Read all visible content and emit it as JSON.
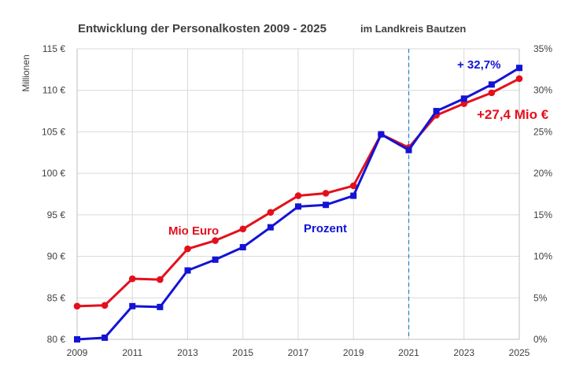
{
  "chart_data": {
    "type": "line",
    "title": "Entwicklung der Personalkosten 2009 - 2025",
    "subtitle": "im Landkreis Bautzen",
    "ylabel": "Millionen",
    "x": [
      2009,
      2010,
      2011,
      2012,
      2013,
      2014,
      2015,
      2016,
      2017,
      2018,
      2019,
      2020,
      2021,
      2022,
      2023,
      2024,
      2025
    ],
    "x_tick_labels": [
      "2009",
      "2011",
      "2013",
      "2015",
      "2017",
      "2019",
      "2021",
      "2023",
      "2025"
    ],
    "y_left": {
      "ylim": [
        80,
        115
      ],
      "ticks": [
        "80 €",
        "85 €",
        "90 €",
        "95 €",
        "100 €",
        "105 €",
        "110 €",
        "115 €"
      ]
    },
    "y_right": {
      "ylim": [
        0,
        35
      ],
      "ticks": [
        "0%",
        "5%",
        "10%",
        "15%",
        "20%",
        "25%",
        "30%",
        "35%"
      ]
    },
    "grid": true,
    "series": [
      {
        "name": "Mio Euro",
        "axis": "left",
        "color": "#e3101c",
        "marker": "circle",
        "values": [
          84.0,
          84.1,
          87.3,
          87.2,
          90.9,
          91.9,
          93.3,
          95.3,
          97.3,
          97.6,
          98.5,
          104.7,
          103.1,
          107.0,
          108.4,
          109.7,
          111.4
        ]
      },
      {
        "name": "Prozent",
        "axis": "right",
        "color": "#1313d6",
        "marker": "square",
        "values": [
          0.0,
          0.2,
          4.0,
          3.9,
          8.3,
          9.6,
          11.1,
          13.5,
          16.0,
          16.2,
          17.3,
          24.7,
          22.8,
          27.5,
          29.0,
          30.7,
          32.7
        ]
      }
    ],
    "reference_line": {
      "x": 2021,
      "color": "#2e86c9",
      "style": "dashed"
    },
    "annotations": [
      {
        "text": "+ 32,7%",
        "color": "#1313d6"
      },
      {
        "text": "+27,4 Mio €",
        "color": "#e3101c"
      }
    ]
  }
}
